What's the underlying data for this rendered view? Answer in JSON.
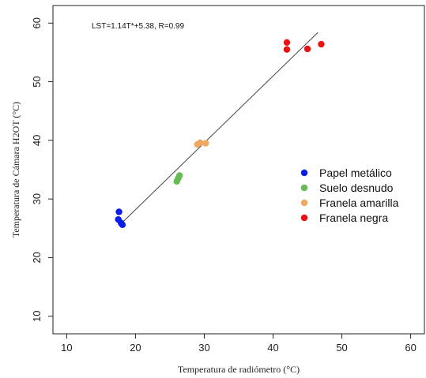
{
  "chart_data": {
    "type": "scatter",
    "title": "",
    "xlabel": "Temperatura de radiómetro (°C)",
    "ylabel": "Temperatura de Cámara H2OT (°C)",
    "xlim": [
      8,
      62
    ],
    "ylim": [
      7,
      63
    ],
    "xticks": [
      10,
      20,
      30,
      40,
      50,
      60
    ],
    "yticks": [
      10,
      20,
      30,
      40,
      50,
      60
    ],
    "grid": false,
    "legend_position": "right-middle",
    "annotation": "LST=1.14T*+5.38, R=0.99",
    "fit_line": {
      "slope": 1.14,
      "intercept": 5.38,
      "x_range": [
        18,
        46.5
      ],
      "color": "#444444"
    },
    "series": [
      {
        "name": "Papel metálico",
        "color": "#0a1de8",
        "points": [
          [
            17.6,
            27.8
          ],
          [
            17.5,
            26.5
          ],
          [
            17.9,
            25.9
          ],
          [
            18.1,
            25.6
          ]
        ]
      },
      {
        "name": "Suelo desnudo",
        "color": "#66bb55",
        "points": [
          [
            26.0,
            33.0
          ],
          [
            26.2,
            33.5
          ],
          [
            26.4,
            34.0
          ]
        ]
      },
      {
        "name": "Franela amarilla",
        "color": "#f0a860",
        "points": [
          [
            29.0,
            39.3
          ],
          [
            29.4,
            39.6
          ],
          [
            30.2,
            39.5
          ]
        ]
      },
      {
        "name": "Franela negra",
        "color": "#ee1111",
        "points": [
          [
            42.0,
            56.7
          ],
          [
            42.0,
            55.5
          ],
          [
            45.0,
            55.6
          ],
          [
            47.0,
            56.4
          ]
        ]
      }
    ]
  }
}
